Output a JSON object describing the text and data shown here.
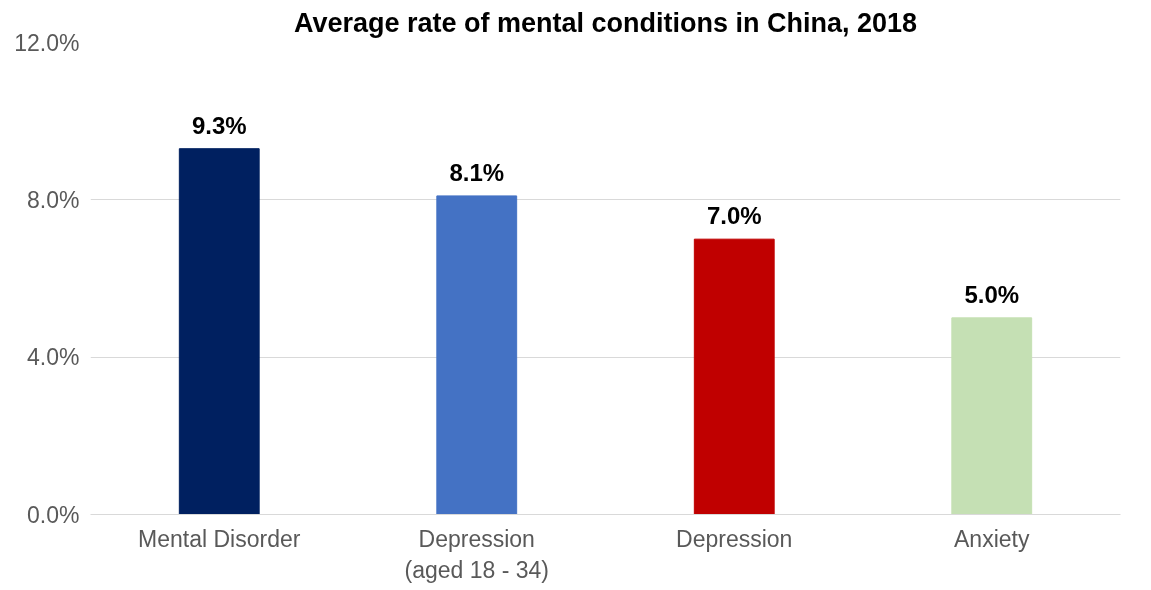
{
  "chart_data": {
    "type": "bar",
    "title": "Average rate of mental conditions in China, 2018",
    "categories": [
      "Mental Disorder",
      "Depression\n(aged 18 - 34)",
      "Depression",
      "Anxiety"
    ],
    "values": [
      9.3,
      8.1,
      7.0,
      5.0
    ],
    "colors": [
      "#002060",
      "#4472c4",
      "#c00000",
      "#c5e0b4"
    ],
    "value_labels": [
      "9.3%",
      "8.1%",
      "7.0%",
      "5.0%"
    ],
    "ylim": [
      0,
      12
    ],
    "yticks": [
      {
        "value": 0,
        "label": "0.0%"
      },
      {
        "value": 4,
        "label": "4.0%"
      },
      {
        "value": 8,
        "label": "8.0%"
      },
      {
        "value": 12,
        "label": "12.0%"
      }
    ],
    "grid": "y"
  }
}
